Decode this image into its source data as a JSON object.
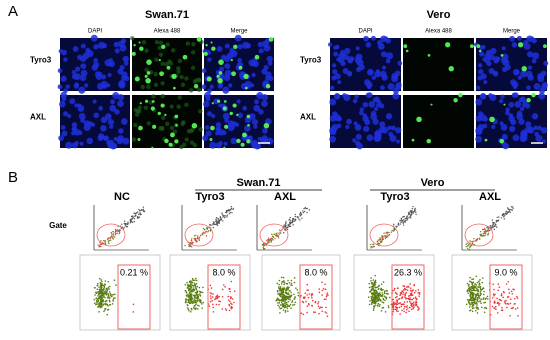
{
  "panel_a": {
    "label": "A",
    "groups": [
      {
        "title": "Swan.71",
        "columns": [
          "DAPI",
          "Alexa 488",
          "Merge"
        ],
        "rows": [
          "Tyro3",
          "AXL"
        ]
      },
      {
        "title": "Vero",
        "columns": [
          "DAPI",
          "Alexa 488",
          "Merge"
        ],
        "rows": [
          "Tyro3",
          "AXL"
        ]
      }
    ]
  },
  "panel_b": {
    "label": "B",
    "row_label": "Gate",
    "control": "NC",
    "groups": [
      {
        "title": "Swan.71",
        "samples": [
          "Tyro3",
          "AXL"
        ]
      },
      {
        "title": "Vero",
        "samples": [
          "Tyro3",
          "AXL"
        ]
      }
    ],
    "percentages": [
      "0.21 %",
      "8.0 %",
      "8.0 %",
      "26.3 %",
      "9.0 %"
    ]
  }
}
